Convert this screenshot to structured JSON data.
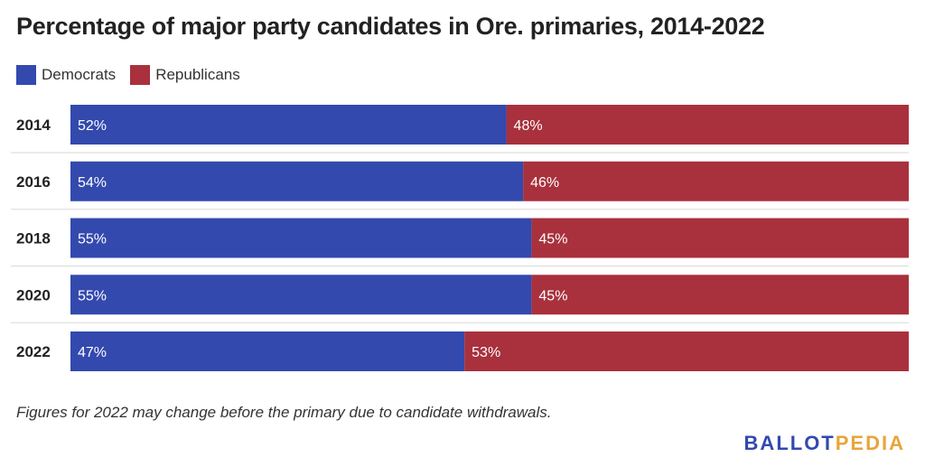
{
  "chart_data": {
    "type": "bar",
    "orientation": "horizontal",
    "stacked": true,
    "title": "Percentage of major party candidates in Ore. primaries, 2014-2022",
    "categories": [
      "2014",
      "2016",
      "2018",
      "2020",
      "2022"
    ],
    "series": [
      {
        "name": "Democrats",
        "color": "#3349ae",
        "values": [
          52,
          54,
          55,
          55,
          47
        ],
        "labels": [
          "52%",
          "54%",
          "55%",
          "55%",
          "47%"
        ]
      },
      {
        "name": "Republicans",
        "color": "#a8313d",
        "values": [
          48,
          46,
          45,
          45,
          53
        ],
        "labels": [
          "48%",
          "46%",
          "45%",
          "45%",
          "53%"
        ]
      }
    ],
    "xlim": [
      0,
      100
    ],
    "legend": "top-left",
    "grid": false
  },
  "footnote": "Figures for 2022 may change before the primary due to candidate withdrawals.",
  "logo": {
    "part1": "BALLOT",
    "part2": "PEDIA",
    "color1": "#3349ae",
    "color2": "#e8a53a"
  }
}
